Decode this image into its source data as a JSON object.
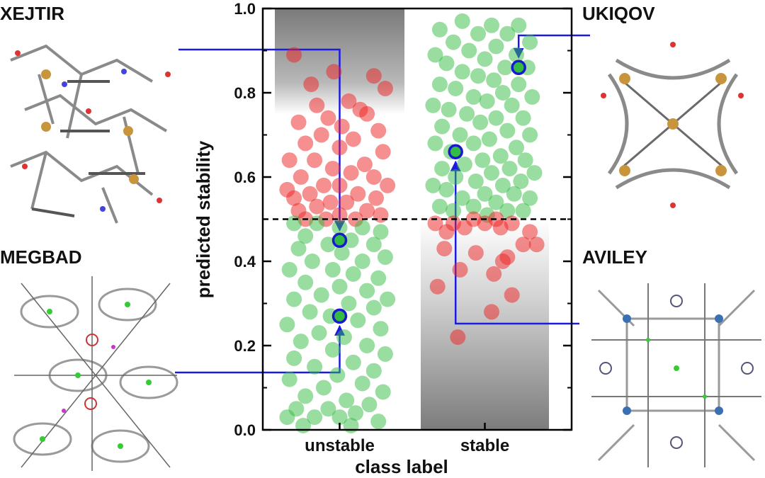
{
  "chart_data": {
    "type": "scatter",
    "xlabel": "class label",
    "ylabel": "predicted stability",
    "categories": [
      "unstable",
      "stable"
    ],
    "ylim": [
      0.0,
      1.0
    ],
    "yticks": [
      "0.0",
      "0.2",
      "0.4",
      "0.6",
      "0.8",
      "1.0"
    ],
    "threshold": 0.5,
    "colors": {
      "correct": "#33bb44",
      "incorrect": "#ee2222",
      "highlight_edge": "#1a1acc",
      "leader": "#1a1ae0"
    },
    "series": [
      {
        "category": "unstable",
        "color": "incorrect",
        "points": [
          [
            0.1,
            0.89
          ],
          [
            0.45,
            0.85
          ],
          [
            0.8,
            0.84
          ],
          [
            0.25,
            0.82
          ],
          [
            0.9,
            0.81
          ],
          [
            0.58,
            0.78
          ],
          [
            0.3,
            0.77
          ],
          [
            0.68,
            0.76
          ],
          [
            0.74,
            0.75
          ],
          [
            0.4,
            0.74
          ],
          [
            0.14,
            0.73
          ],
          [
            0.52,
            0.72
          ],
          [
            0.84,
            0.71
          ],
          [
            0.34,
            0.7
          ],
          [
            0.62,
            0.69
          ],
          [
            0.2,
            0.68
          ],
          [
            0.5,
            0.67
          ],
          [
            0.88,
            0.66
          ],
          [
            0.06,
            0.64
          ],
          [
            0.28,
            0.64
          ],
          [
            0.72,
            0.63
          ],
          [
            0.44,
            0.62
          ],
          [
            0.6,
            0.61
          ],
          [
            0.8,
            0.6
          ],
          [
            0.16,
            0.6
          ],
          [
            0.36,
            0.58
          ],
          [
            0.5,
            0.58
          ],
          [
            0.92,
            0.58
          ],
          [
            0.04,
            0.57
          ],
          [
            0.24,
            0.56
          ],
          [
            0.66,
            0.56
          ],
          [
            0.82,
            0.55
          ],
          [
            0.1,
            0.55
          ],
          [
            0.42,
            0.54
          ],
          [
            0.56,
            0.54
          ],
          [
            0.3,
            0.53
          ],
          [
            0.74,
            0.52
          ],
          [
            0.14,
            0.52
          ],
          [
            0.5,
            0.51
          ],
          [
            0.86,
            0.51
          ],
          [
            0.2,
            0.5
          ],
          [
            0.38,
            0.5
          ],
          [
            0.64,
            0.5
          ]
        ]
      },
      {
        "category": "unstable",
        "color": "correct",
        "points": [
          [
            0.1,
            0.49
          ],
          [
            0.3,
            0.49
          ],
          [
            0.5,
            0.48
          ],
          [
            0.7,
            0.48
          ],
          [
            0.86,
            0.47
          ],
          [
            0.2,
            0.46
          ],
          [
            0.6,
            0.45
          ],
          [
            0.4,
            0.44
          ],
          [
            0.8,
            0.44
          ],
          [
            0.14,
            0.43
          ],
          [
            0.52,
            0.42
          ],
          [
            0.9,
            0.41
          ],
          [
            0.26,
            0.4
          ],
          [
            0.7,
            0.4
          ],
          [
            0.06,
            0.38
          ],
          [
            0.44,
            0.38
          ],
          [
            0.62,
            0.37
          ],
          [
            0.84,
            0.36
          ],
          [
            0.2,
            0.35
          ],
          [
            0.5,
            0.34
          ],
          [
            0.74,
            0.33
          ],
          [
            0.34,
            0.32
          ],
          [
            0.1,
            0.31
          ],
          [
            0.92,
            0.31
          ],
          [
            0.58,
            0.3
          ],
          [
            0.8,
            0.29
          ],
          [
            0.24,
            0.28
          ],
          [
            0.42,
            0.27
          ],
          [
            0.66,
            0.26
          ],
          [
            0.04,
            0.25
          ],
          [
            0.86,
            0.24
          ],
          [
            0.32,
            0.23
          ],
          [
            0.54,
            0.22
          ],
          [
            0.16,
            0.21
          ],
          [
            0.74,
            0.2
          ],
          [
            0.44,
            0.19
          ],
          [
            0.9,
            0.18
          ],
          [
            0.1,
            0.17
          ],
          [
            0.62,
            0.16
          ],
          [
            0.28,
            0.15
          ],
          [
            0.8,
            0.14
          ],
          [
            0.48,
            0.13
          ],
          [
            0.06,
            0.12
          ],
          [
            0.7,
            0.11
          ],
          [
            0.36,
            0.1
          ],
          [
            0.88,
            0.09
          ],
          [
            0.2,
            0.08
          ],
          [
            0.56,
            0.07
          ],
          [
            0.76,
            0.06
          ],
          [
            0.12,
            0.05
          ],
          [
            0.4,
            0.05
          ],
          [
            0.64,
            0.04
          ],
          [
            0.04,
            0.03
          ],
          [
            0.28,
            0.03
          ],
          [
            0.5,
            0.03
          ],
          [
            0.84,
            0.02
          ],
          [
            0.18,
            0.01
          ],
          [
            0.6,
            0.01
          ]
        ]
      },
      {
        "category": "stable",
        "color": "correct",
        "points": [
          [
            0.3,
            0.97
          ],
          [
            0.56,
            0.96
          ],
          [
            0.8,
            0.96
          ],
          [
            0.1,
            0.95
          ],
          [
            0.44,
            0.94
          ],
          [
            0.7,
            0.94
          ],
          [
            0.22,
            0.92
          ],
          [
            0.9,
            0.92
          ],
          [
            0.6,
            0.91
          ],
          [
            0.36,
            0.9
          ],
          [
            0.06,
            0.89
          ],
          [
            0.78,
            0.89
          ],
          [
            0.5,
            0.88
          ],
          [
            0.16,
            0.87
          ],
          [
            0.68,
            0.86
          ],
          [
            0.88,
            0.86
          ],
          [
            0.3,
            0.85
          ],
          [
            0.44,
            0.84
          ],
          [
            0.58,
            0.83
          ],
          [
            0.1,
            0.82
          ],
          [
            0.8,
            0.82
          ],
          [
            0.24,
            0.81
          ],
          [
            0.66,
            0.8
          ],
          [
            0.4,
            0.79
          ],
          [
            0.92,
            0.79
          ],
          [
            0.52,
            0.78
          ],
          [
            0.04,
            0.77
          ],
          [
            0.74,
            0.77
          ],
          [
            0.18,
            0.76
          ],
          [
            0.34,
            0.75
          ],
          [
            0.84,
            0.74
          ],
          [
            0.6,
            0.74
          ],
          [
            0.46,
            0.73
          ],
          [
            0.12,
            0.72
          ],
          [
            0.7,
            0.71
          ],
          [
            0.28,
            0.7
          ],
          [
            0.9,
            0.7
          ],
          [
            0.54,
            0.69
          ],
          [
            0.06,
            0.68
          ],
          [
            0.4,
            0.68
          ],
          [
            0.78,
            0.67
          ],
          [
            0.2,
            0.66
          ],
          [
            0.64,
            0.65
          ],
          [
            0.48,
            0.64
          ],
          [
            0.86,
            0.64
          ],
          [
            0.32,
            0.63
          ],
          [
            0.12,
            0.62
          ],
          [
            0.72,
            0.62
          ],
          [
            0.56,
            0.61
          ],
          [
            0.94,
            0.61
          ],
          [
            0.24,
            0.6
          ],
          [
            0.42,
            0.59
          ],
          [
            0.82,
            0.59
          ],
          [
            0.04,
            0.58
          ],
          [
            0.66,
            0.58
          ],
          [
            0.16,
            0.57
          ],
          [
            0.5,
            0.56
          ],
          [
            0.76,
            0.56
          ],
          [
            0.3,
            0.55
          ],
          [
            0.9,
            0.55
          ],
          [
            0.6,
            0.54
          ],
          [
            0.1,
            0.53
          ],
          [
            0.4,
            0.53
          ],
          [
            0.7,
            0.52
          ],
          [
            0.22,
            0.52
          ],
          [
            0.84,
            0.52
          ],
          [
            0.52,
            0.51
          ]
        ]
      },
      {
        "category": "stable",
        "color": "incorrect",
        "points": [
          [
            0.4,
            0.5
          ],
          [
            0.6,
            0.5
          ],
          [
            0.06,
            0.49
          ],
          [
            0.22,
            0.49
          ],
          [
            0.5,
            0.49
          ],
          [
            0.74,
            0.49
          ],
          [
            0.32,
            0.48
          ],
          [
            0.64,
            0.48
          ],
          [
            0.9,
            0.47
          ],
          [
            0.16,
            0.47
          ],
          [
            0.84,
            0.44
          ],
          [
            0.96,
            0.44
          ],
          [
            0.14,
            0.43
          ],
          [
            0.42,
            0.42
          ],
          [
            0.7,
            0.41
          ],
          [
            0.66,
            0.4
          ],
          [
            0.28,
            0.38
          ],
          [
            0.58,
            0.37
          ],
          [
            0.08,
            0.34
          ],
          [
            0.74,
            0.32
          ],
          [
            0.56,
            0.28
          ],
          [
            0.26,
            0.22
          ]
        ]
      }
    ],
    "highlights": [
      {
        "name": "XEJTIR",
        "category": "unstable",
        "position": 0.5,
        "value": 0.45
      },
      {
        "name": "MEGBAD",
        "category": "unstable",
        "position": 0.5,
        "value": 0.27
      },
      {
        "name": "UKIQOV",
        "category": "stable",
        "position": 0.8,
        "value": 0.86
      },
      {
        "name": "AVILEY",
        "category": "stable",
        "position": 0.24,
        "value": 0.66
      }
    ]
  },
  "panels": [
    {
      "key": "xejtir",
      "label": "XEJTIR"
    },
    {
      "key": "megbad",
      "label": "MEGBAD"
    },
    {
      "key": "ukiqov",
      "label": "UKIQOV"
    },
    {
      "key": "aviley",
      "label": "AVILEY"
    }
  ]
}
